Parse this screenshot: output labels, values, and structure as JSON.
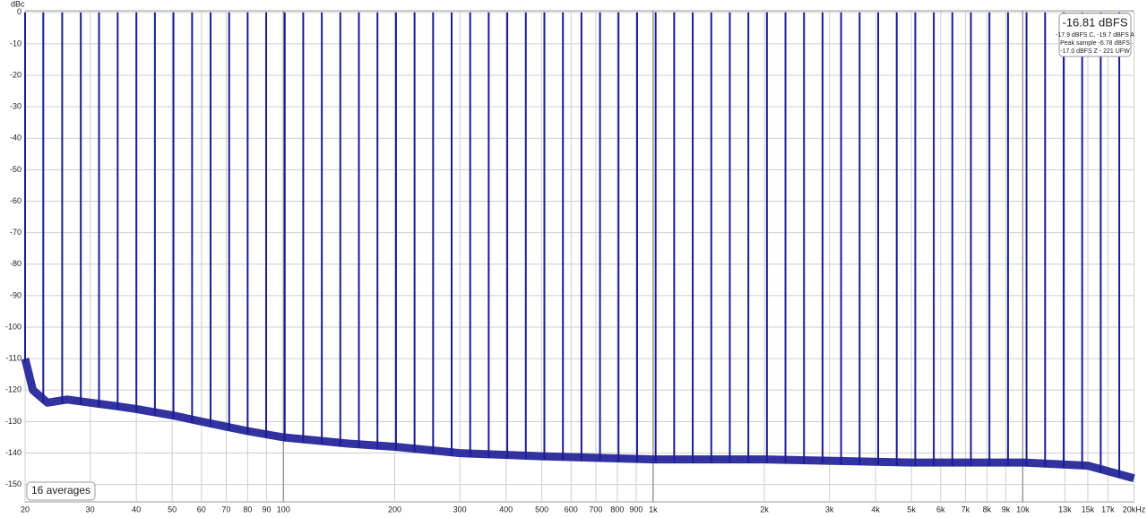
{
  "chart_data": {
    "type": "spectrum",
    "y_label": "dBc",
    "x_log": true,
    "grid": true,
    "xlim": [
      20,
      20000
    ],
    "ylim": [
      -155.5,
      0.5
    ],
    "yticks": [
      0,
      -10,
      -20,
      -30,
      -40,
      -50,
      -60,
      -70,
      -80,
      -90,
      -100,
      -110,
      -120,
      -130,
      -140,
      -150
    ],
    "xticks": [
      20,
      30,
      40,
      50,
      60,
      70,
      80,
      90,
      100,
      200,
      300,
      400,
      500,
      600,
      700,
      800,
      900,
      {
        "value": 1000,
        "label": "1k"
      },
      {
        "value": 2000,
        "label": "2k"
      },
      {
        "value": 3000,
        "label": "3k"
      },
      {
        "value": 4000,
        "label": "4k"
      },
      {
        "value": 5000,
        "label": "5k"
      },
      {
        "value": 6000,
        "label": "6k"
      },
      {
        "value": 7000,
        "label": "7k"
      },
      {
        "value": 8000,
        "label": "8k"
      },
      {
        "value": 9000,
        "label": "9k"
      },
      {
        "value": 10000,
        "label": "10k"
      },
      {
        "value": 13000,
        "label": "13k"
      },
      {
        "value": 15000,
        "label": "15k"
      },
      {
        "value": 17000,
        "label": "17k"
      },
      {
        "value": 20000,
        "label": "20kHz"
      }
    ],
    "tones": {
      "color": "#1c1c96",
      "x": [
        20,
        22.4,
        25.2,
        28.3,
        31.7,
        35.6,
        40,
        44.9,
        50.4,
        56.6,
        63.5,
        71.3,
        80,
        89.8,
        100.8,
        113.1,
        127,
        142.5,
        160,
        179.6,
        201.6,
        226.3,
        254,
        285.1,
        320,
        359.2,
        403.2,
        452.5,
        508,
        570.2,
        640,
        718.4,
        806.3,
        905.1,
        1016,
        1140.4,
        1280,
        1436.8,
        1612.7,
        1810.2,
        2032,
        2280.8,
        2560,
        2873.5,
        3225.4,
        3620.4,
        4064,
        4561.6,
        5120,
        5747,
        6450.8,
        7240.8,
        8127.5,
        9123.1,
        10240,
        11494,
        12902,
        14482,
        16255,
        18246
      ],
      "values": [
        0,
        0,
        0,
        0,
        0,
        0,
        0,
        0,
        0,
        0,
        0,
        0,
        0,
        0,
        0,
        0,
        0,
        0,
        0,
        0,
        0,
        0,
        0,
        0,
        0,
        0,
        0,
        0,
        0,
        0,
        0,
        0,
        0,
        0,
        0,
        0,
        0,
        0,
        0,
        0,
        0,
        0,
        0,
        0,
        0,
        0,
        0,
        0,
        0,
        0,
        0,
        0,
        0,
        0,
        0,
        0,
        0,
        0,
        0,
        0
      ]
    },
    "noise": {
      "color": "#1c1c96",
      "x": [
        20,
        21,
        23,
        26,
        30,
        35,
        40,
        50,
        60,
        80,
        100,
        150,
        200,
        300,
        500,
        1000,
        2000,
        5000,
        10000,
        15000,
        20000
      ],
      "values": [
        -110,
        -120,
        -124,
        -123,
        -124,
        -125,
        -126,
        -128,
        -130,
        -133,
        -135,
        -137,
        -138,
        -140,
        -141,
        -142,
        -142,
        -143,
        -143,
        -144,
        -148
      ]
    },
    "info_box": {
      "level": "-16.81 dBFS",
      "lines": [
        "-17.9 dBFS C, -19.7 dBFS A",
        "Peak sample -6.78 dBFS",
        "-17.0 dBFS Z - 221 UFW"
      ]
    },
    "averages": "16 averages"
  }
}
